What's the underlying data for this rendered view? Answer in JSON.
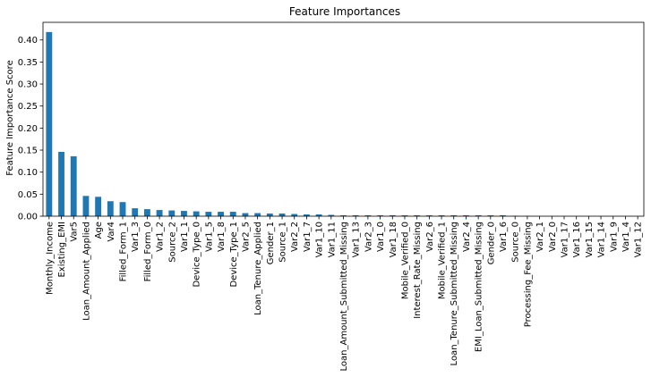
{
  "chart_data": {
    "type": "bar",
    "title": "Feature Importances",
    "xlabel": "",
    "ylabel": "Feature Importance Score",
    "ylim": [
      0,
      0.44
    ],
    "yticks": [
      "0.00",
      "0.05",
      "0.10",
      "0.15",
      "0.20",
      "0.25",
      "0.30",
      "0.35",
      "0.40"
    ],
    "bar_color": "#1f77b4",
    "grid": false,
    "categories": [
      "Monthly_Income",
      "Existing_EMI",
      "Var5",
      "Loan_Amount_Applied",
      "Age",
      "Var4",
      "Filled_Form_1",
      "Var1_3",
      "Filled_Form_0",
      "Var1_2",
      "Source_2",
      "Var1_1",
      "Device_Type_0",
      "Var1_5",
      "Var1_8",
      "Device_Type_1",
      "Var2_5",
      "Loan_Tenure_Applied",
      "Gender_1",
      "Source_1",
      "Var2_2",
      "Var1_7",
      "Var1_10",
      "Var1_11",
      "Loan_Amount_Submitted_Missing",
      "Var1_13",
      "Var2_3",
      "Var1_0",
      "Var1_18",
      "Mobile_Verified_0",
      "Interest_Rate_Missing",
      "Var2_6",
      "Mobile_Verified_1",
      "Loan_Tenure_Submitted_Missing",
      "Var2_4",
      "EMI_Loan_Submitted_Missing",
      "Gender_0",
      "Var1_6",
      "Source_0",
      "Processing_Fee_Missing",
      "Var2_1",
      "Var2_0",
      "Var1_17",
      "Var1_16",
      "Var1_15",
      "Var1_14",
      "Var1_9",
      "Var1_4",
      "Var1_12"
    ],
    "values": [
      0.418,
      0.146,
      0.136,
      0.046,
      0.044,
      0.034,
      0.032,
      0.018,
      0.016,
      0.014,
      0.013,
      0.012,
      0.011,
      0.01,
      0.01,
      0.01,
      0.007,
      0.007,
      0.006,
      0.006,
      0.005,
      0.004,
      0.004,
      0.003,
      0.002,
      0.002,
      0.002,
      0.002,
      0.002,
      0.002,
      0.002,
      0.002,
      0.002,
      0.002,
      0.002,
      0.002,
      0.002,
      0.002,
      0.001,
      0.0005,
      0.0,
      0.0,
      0.0,
      0.0,
      0.0,
      0.0,
      0.0,
      0.0,
      0.0
    ]
  }
}
